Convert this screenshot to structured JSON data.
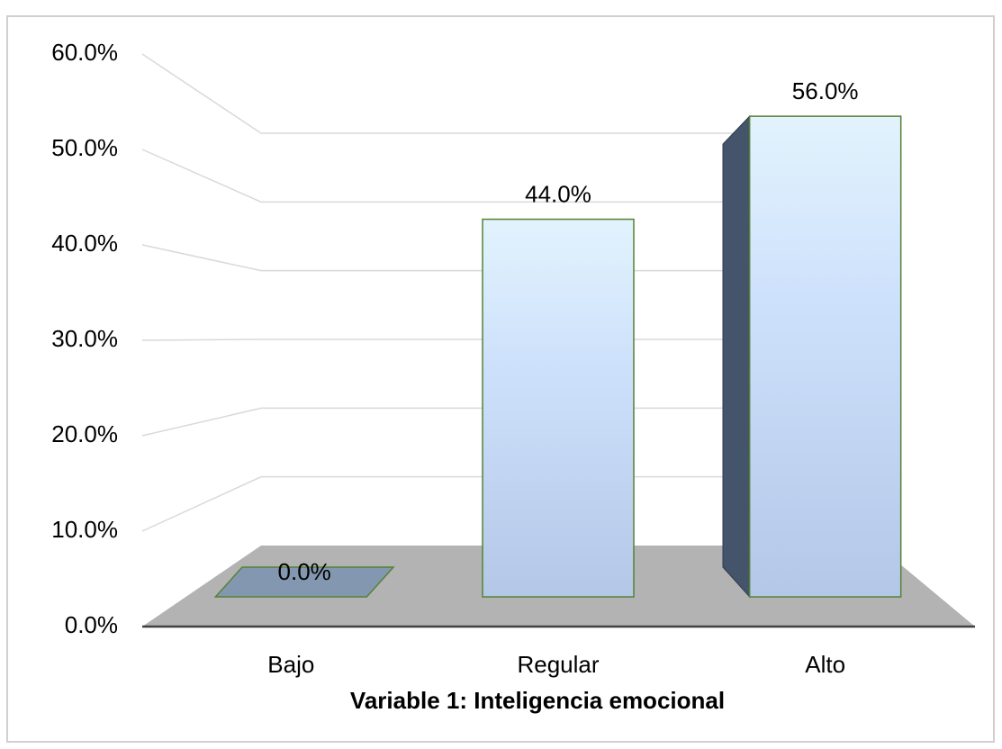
{
  "chart_data": {
    "type": "bar3d",
    "x_label": "Variable 1: Inteligencia emocional",
    "categories": [
      "Bajo",
      "Regular",
      "Alto"
    ],
    "values": [
      0,
      44,
      56
    ],
    "value_labels": [
      "0.0%",
      "44.0%",
      "56.0%"
    ],
    "ylim": [
      0,
      60
    ],
    "yticks": [
      {
        "value": 0,
        "label": "0.0%"
      },
      {
        "value": 10,
        "label": "10.0%"
      },
      {
        "value": 20,
        "label": "20.0%"
      },
      {
        "value": 30,
        "label": "30.0%"
      },
      {
        "value": 40,
        "label": "40.0%"
      },
      {
        "value": 50,
        "label": "50.0%"
      },
      {
        "value": 60,
        "label": "60.0%"
      }
    ],
    "grid": true,
    "color": "#b4c7e7"
  }
}
